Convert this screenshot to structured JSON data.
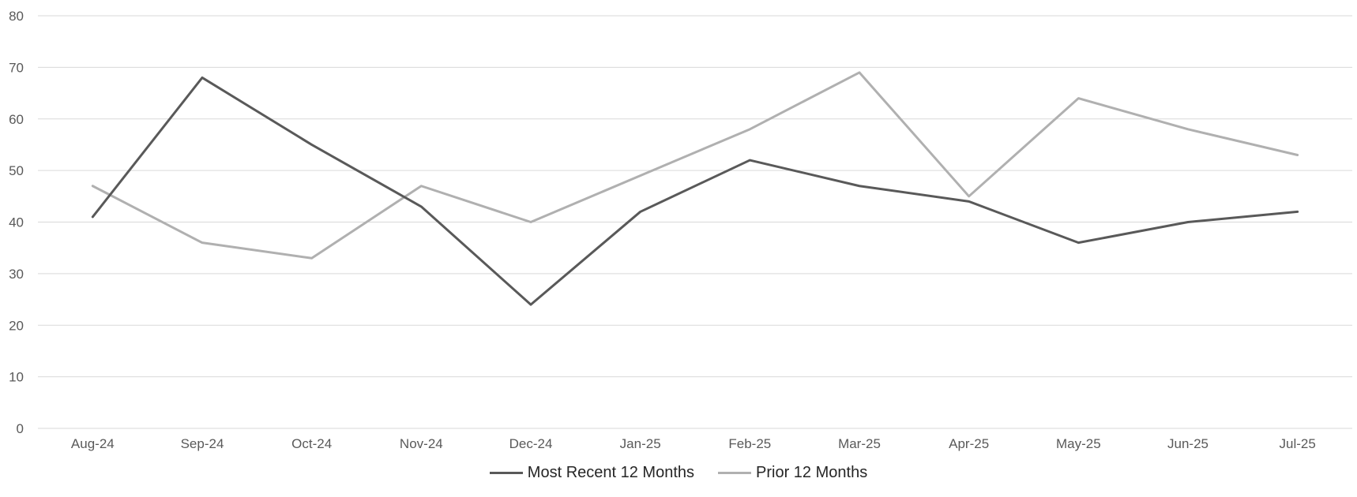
{
  "chart_data": {
    "type": "line",
    "categories": [
      "Aug-24",
      "Sep-24",
      "Oct-24",
      "Nov-24",
      "Dec-24",
      "Jan-25",
      "Feb-25",
      "Mar-25",
      "Apr-25",
      "May-25",
      "Jun-25",
      "Jul-25"
    ],
    "series": [
      {
        "name": "Most Recent 12 Months",
        "color": "#595959",
        "values": [
          41,
          68,
          55,
          43,
          24,
          42,
          52,
          47,
          44,
          36,
          40,
          42
        ]
      },
      {
        "name": "Prior 12 Months",
        "color": "#b0b0b0",
        "values": [
          47,
          36,
          33,
          47,
          40,
          49,
          58,
          69,
          45,
          64,
          58,
          53
        ]
      }
    ],
    "yticks": [
      "0",
      "10",
      "20",
      "30",
      "40",
      "50",
      "60",
      "70",
      "80"
    ],
    "ylim": [
      0,
      80
    ],
    "grid": true,
    "legend_position": "bottom"
  }
}
